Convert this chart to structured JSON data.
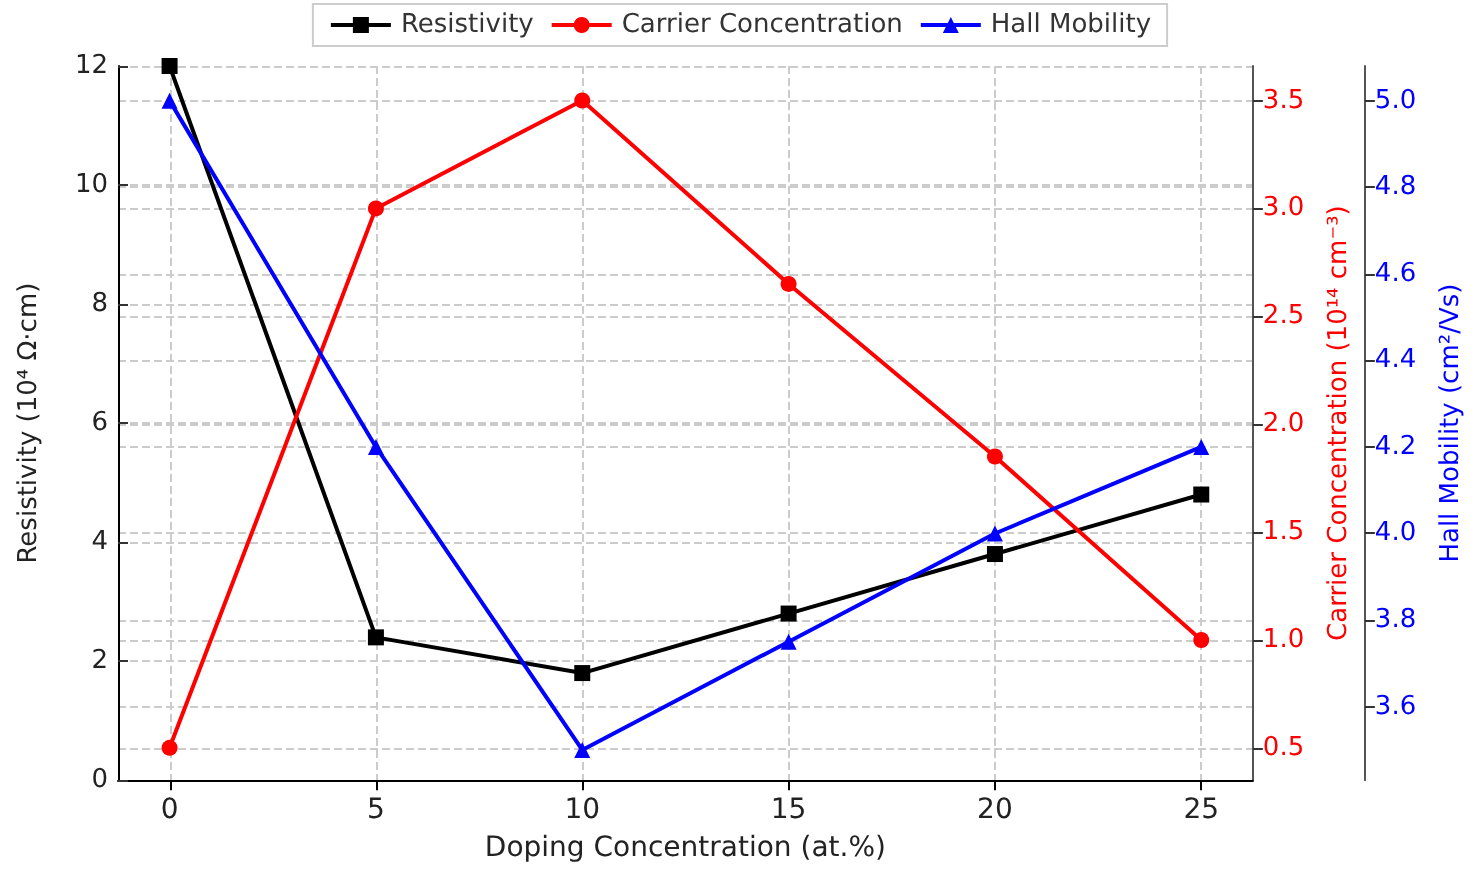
{
  "chart_data": {
    "type": "line",
    "xlabel": "Doping Concentration (at.%)",
    "ylabel": "Resistivity (10⁴ Ω·cm)",
    "y2label": "Carrier Concentration (10¹⁴ cm⁻³)",
    "y3label": "Hall Mobility (cm²/Vs)",
    "x": [
      0,
      5,
      10,
      15,
      20,
      25
    ],
    "series": [
      {
        "name": "Resistivity",
        "color": "#000000",
        "marker": "square",
        "values": [
          12,
          2.4,
          1.8,
          2.8,
          3.8,
          4.8
        ]
      },
      {
        "name": "Carrier Concentration",
        "color": "#ff0000",
        "marker": "circle",
        "axis": "y2",
        "values": [
          0.5,
          3.0,
          3.5,
          2.65,
          1.85,
          1.0
        ]
      },
      {
        "name": "Hall Mobility",
        "color": "#0000ff",
        "marker": "triangle",
        "axis": "y3",
        "values": [
          5.0,
          4.2,
          3.5,
          3.75,
          4.0,
          4.2
        ]
      }
    ],
    "xlim": [
      -1.25,
      26.25
    ],
    "xticks": [
      0,
      5,
      10,
      15,
      20,
      25
    ],
    "ylim": [
      0,
      12
    ],
    "yticks": [
      0,
      2,
      4,
      6,
      8,
      10,
      12
    ],
    "y2lim": [
      0.35,
      3.66
    ],
    "y2ticks": [
      0.5,
      {
        "value": 1,
        "label": "1.0"
      },
      1.5,
      {
        "value": 2,
        "label": "2.0"
      },
      2.5,
      {
        "value": 3,
        "label": "3.0"
      },
      3.5
    ],
    "y3lim": [
      3.43,
      5.08
    ],
    "y3ticks": [
      3.6,
      3.8,
      {
        "value": 4,
        "label": "4.0"
      },
      4.2,
      4.4,
      4.6,
      4.8,
      {
        "value": 5,
        "label": "5.0"
      }
    ],
    "grid": true,
    "legend": "top",
    "line_style": "solid"
  }
}
